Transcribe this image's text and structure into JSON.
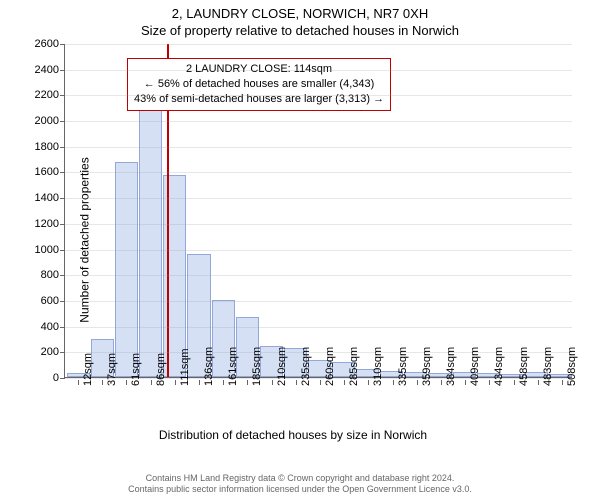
{
  "title": {
    "main": "2, LAUNDRY CLOSE, NORWICH, NR7 0XH",
    "sub": "Size of property relative to detached houses in Norwich"
  },
  "chart": {
    "type": "histogram",
    "y_label": "Number of detached properties",
    "x_label": "Distribution of detached houses by size in Norwich",
    "y_max": 2600,
    "y_ticks": [
      0,
      200,
      400,
      600,
      800,
      1000,
      1200,
      1400,
      1600,
      1800,
      2000,
      2200,
      2400,
      2600
    ],
    "x_tick_labels": [
      "12sqm",
      "37sqm",
      "61sqm",
      "86sqm",
      "111sqm",
      "136sqm",
      "161sqm",
      "185sqm",
      "210sqm",
      "235sqm",
      "260sqm",
      "285sqm",
      "310sqm",
      "335sqm",
      "359sqm",
      "384sqm",
      "409sqm",
      "434sqm",
      "458sqm",
      "483sqm",
      "508sqm"
    ],
    "bar_values": [
      30,
      300,
      1680,
      2140,
      1580,
      960,
      600,
      470,
      240,
      230,
      130,
      120,
      60,
      50,
      40,
      35,
      40,
      30,
      25,
      40,
      25
    ],
    "bar_fill_color": "#d6e0f5",
    "bar_border_color": "#93a8d9",
    "grid_color": "rgba(160,160,160,0.25)",
    "axis_color": "#666666",
    "background_color": "#ffffff",
    "marker": {
      "color": "#c00000",
      "bin_index": 4
    },
    "annotation": {
      "line1": "2 LAUNDRY CLOSE: 114sqm",
      "line2": "← 56% of detached houses are smaller (4,343)",
      "line3": "43% of semi-detached houses are larger (3,313) →",
      "border_color": "#c00000",
      "fontsize": 11
    }
  },
  "footer": {
    "line1": "Contains HM Land Registry data © Crown copyright and database right 2024.",
    "line2": "Contains public sector information licensed under the Open Government Licence v3.0."
  }
}
